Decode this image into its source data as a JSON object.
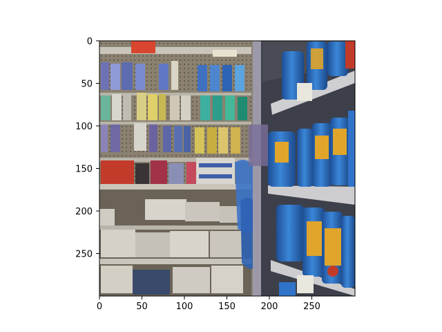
{
  "image": {
    "description_icon": "store-shelf-photo",
    "x_extent": [
      0,
      300
    ],
    "y_extent": [
      300,
      0
    ]
  },
  "axes": {
    "x_ticks": [
      {
        "value": 0,
        "label": "0"
      },
      {
        "value": 50,
        "label": "50"
      },
      {
        "value": 100,
        "label": "100"
      },
      {
        "value": 150,
        "label": "150"
      },
      {
        "value": 200,
        "label": "200"
      },
      {
        "value": 250,
        "label": "250"
      }
    ],
    "y_ticks": [
      {
        "value": 0,
        "label": "0"
      },
      {
        "value": 50,
        "label": "50"
      },
      {
        "value": 100,
        "label": "100"
      },
      {
        "value": 150,
        "label": "150"
      },
      {
        "value": 200,
        "label": "200"
      },
      {
        "value": 250,
        "label": "250"
      }
    ]
  },
  "colors": {
    "shelf_metal": "#c9c5bb",
    "pegboard": "#8a8170",
    "can_blue": "#2f74c8",
    "can_gold": "#e0a52a",
    "paper_white": "#d8d4cc"
  }
}
